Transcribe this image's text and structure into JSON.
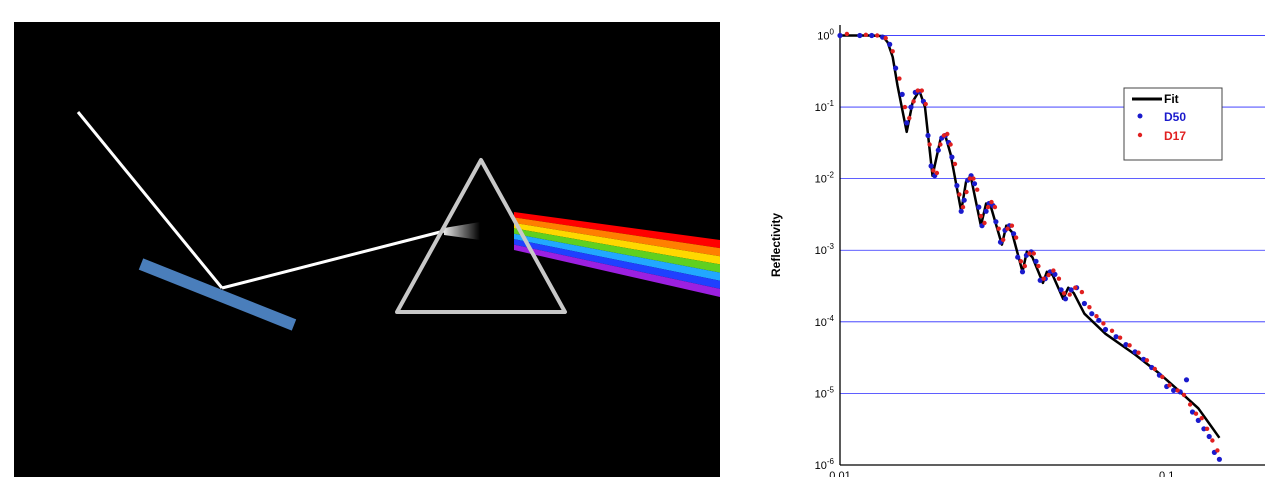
{
  "colors": {
    "background": "#000000",
    "mirror": "#4a7ebb",
    "beam": "#ffffff",
    "prism_edge": "#c8c8c8",
    "grid": "#2a2aff",
    "fit": "#000000",
    "d50": "#1a1acc",
    "d17": "#e02020"
  },
  "spectrum": [
    "#ff0000",
    "#ff7f00",
    "#ffd800",
    "#5fd020",
    "#22a8ff",
    "#2040ff",
    "#9c20e0"
  ],
  "icons": {
    "mirror": "mirror-bar",
    "prism": "triangular-prism"
  },
  "chart_data": {
    "type": "scatter",
    "ylabel": "Reflectivity",
    "yscale": "log",
    "xscale": "log",
    "ylim": [
      1e-06,
      1.4
    ],
    "xlim": [
      0.01,
      0.2
    ],
    "grid": true,
    "legend": "top-right",
    "yticks": [
      {
        "base": "10",
        "exp": "0",
        "value": 1
      },
      {
        "base": "10",
        "exp": "-1",
        "value": 0.1
      },
      {
        "base": "10",
        "exp": "-2",
        "value": 0.01
      },
      {
        "base": "10",
        "exp": "-3",
        "value": 0.001
      },
      {
        "base": "10",
        "exp": "-4",
        "value": 0.0001
      },
      {
        "base": "10",
        "exp": "-5",
        "value": 1e-05
      },
      {
        "base": "10",
        "exp": "-6",
        "value": 1e-06
      }
    ],
    "xticks": [
      {
        "label": "0.01",
        "value": 0.01
      },
      {
        "label": "0.1",
        "value": 0.1
      }
    ],
    "series": [
      {
        "name": "Fit",
        "style": "line",
        "x": [
          0.01,
          0.0125,
          0.0135,
          0.014,
          0.0145,
          0.015,
          0.016,
          0.0167,
          0.0175,
          0.0182,
          0.0192,
          0.0203,
          0.021,
          0.0218,
          0.0235,
          0.0243,
          0.0251,
          0.027,
          0.028,
          0.029,
          0.0313,
          0.0323,
          0.0336,
          0.0362,
          0.0373,
          0.0388,
          0.0418,
          0.043,
          0.0448,
          0.0482,
          0.05,
          0.052,
          0.056,
          0.065,
          0.08,
          0.095,
          0.11,
          0.125,
          0.135,
          0.145
        ],
        "y": [
          1.0,
          1.0,
          0.98,
          0.8,
          0.5,
          0.2,
          0.045,
          0.12,
          0.17,
          0.1,
          0.011,
          0.035,
          0.04,
          0.022,
          0.0035,
          0.009,
          0.011,
          0.0022,
          0.0045,
          0.004,
          0.0012,
          0.0022,
          0.0018,
          0.0005,
          0.00095,
          0.0008,
          0.00035,
          0.0005,
          0.00045,
          0.00021,
          0.0003,
          0.00025,
          0.00013,
          6.8e-05,
          3.5e-05,
          1.9e-05,
          1.05e-05,
          6.2e-06,
          3.8e-06,
          2.4e-06
        ]
      },
      {
        "name": "D50",
        "style": "points",
        "x": [
          0.01,
          0.0115,
          0.0125,
          0.0135,
          0.0142,
          0.0148,
          0.0155,
          0.016,
          0.0165,
          0.017,
          0.0175,
          0.018,
          0.0186,
          0.019,
          0.0195,
          0.02,
          0.0205,
          0.021,
          0.0215,
          0.022,
          0.0228,
          0.0235,
          0.024,
          0.0246,
          0.0252,
          0.0258,
          0.0266,
          0.0272,
          0.028,
          0.0286,
          0.0294,
          0.03,
          0.031,
          0.032,
          0.033,
          0.034,
          0.035,
          0.0362,
          0.0372,
          0.0385,
          0.0398,
          0.041,
          0.0425,
          0.044,
          0.0455,
          0.0475,
          0.049,
          0.051,
          0.053,
          0.056,
          0.059,
          0.062,
          0.065,
          0.07,
          0.075,
          0.08,
          0.085,
          0.09,
          0.095,
          0.1,
          0.105,
          0.11,
          0.115,
          0.12,
          0.125,
          0.13,
          0.135,
          0.14,
          0.145
        ],
        "y": [
          1.0,
          1.0,
          1.0,
          0.95,
          0.75,
          0.35,
          0.15,
          0.06,
          0.1,
          0.16,
          0.165,
          0.12,
          0.04,
          0.015,
          0.011,
          0.025,
          0.037,
          0.04,
          0.032,
          0.02,
          0.008,
          0.0035,
          0.005,
          0.0095,
          0.011,
          0.0085,
          0.004,
          0.0022,
          0.0035,
          0.0045,
          0.0042,
          0.0025,
          0.0013,
          0.0019,
          0.0022,
          0.0017,
          0.0008,
          0.0005,
          0.00085,
          0.00095,
          0.0007,
          0.00038,
          0.0004,
          0.0005,
          0.00046,
          0.00028,
          0.00021,
          0.00028,
          0.0003,
          0.00018,
          0.00013,
          0.000105,
          7.8e-05,
          6.2e-05,
          4.8e-05,
          3.8e-05,
          3e-05,
          2.3e-05,
          1.8e-05,
          1.25e-05,
          1.1e-05,
          1.05e-05,
          1.55e-05,
          5.5e-06,
          4.2e-06,
          3.2e-06,
          2.5e-06,
          1.5e-06,
          1.2e-06
        ]
      },
      {
        "name": "D17",
        "style": "points",
        "x": [
          0.0105,
          0.012,
          0.013,
          0.0138,
          0.0145,
          0.0152,
          0.0158,
          0.0163,
          0.0168,
          0.0173,
          0.0178,
          0.0183,
          0.0188,
          0.0193,
          0.0198,
          0.0203,
          0.0208,
          0.0213,
          0.0218,
          0.0225,
          0.0232,
          0.0238,
          0.0244,
          0.025,
          0.0256,
          0.0263,
          0.027,
          0.0277,
          0.0284,
          0.0291,
          0.0298,
          0.0306,
          0.0316,
          0.0326,
          0.0336,
          0.0346,
          0.0358,
          0.0368,
          0.038,
          0.0392,
          0.0405,
          0.042,
          0.0435,
          0.045,
          0.0468,
          0.0485,
          0.0505,
          0.0525,
          0.055,
          0.058,
          0.061,
          0.064,
          0.068,
          0.072,
          0.077,
          0.082,
          0.087,
          0.092,
          0.097,
          0.102,
          0.108,
          0.113,
          0.118,
          0.123,
          0.128,
          0.133,
          0.138,
          0.143
        ],
        "y": [
          1.05,
          1.02,
          1.0,
          0.92,
          0.6,
          0.25,
          0.1,
          0.07,
          0.12,
          0.17,
          0.17,
          0.11,
          0.03,
          0.013,
          0.012,
          0.03,
          0.04,
          0.042,
          0.03,
          0.016,
          0.006,
          0.004,
          0.0065,
          0.01,
          0.01,
          0.007,
          0.003,
          0.0024,
          0.004,
          0.0047,
          0.004,
          0.002,
          0.0014,
          0.002,
          0.0022,
          0.0015,
          0.0007,
          0.0006,
          0.0009,
          0.0009,
          0.0006,
          0.0004,
          0.00045,
          0.00052,
          0.0004,
          0.00025,
          0.00024,
          0.0003,
          0.00026,
          0.00016,
          0.00012,
          9.5e-05,
          7.5e-05,
          6e-05,
          4.7e-05,
          3.7e-05,
          2.9e-05,
          2.2e-05,
          1.7e-05,
          1.3e-05,
          1.1e-05,
          9.5e-06,
          7e-06,
          5.2e-06,
          4.5e-06,
          3.2e-06,
          2.2e-06,
          1.6e-06
        ]
      }
    ]
  }
}
